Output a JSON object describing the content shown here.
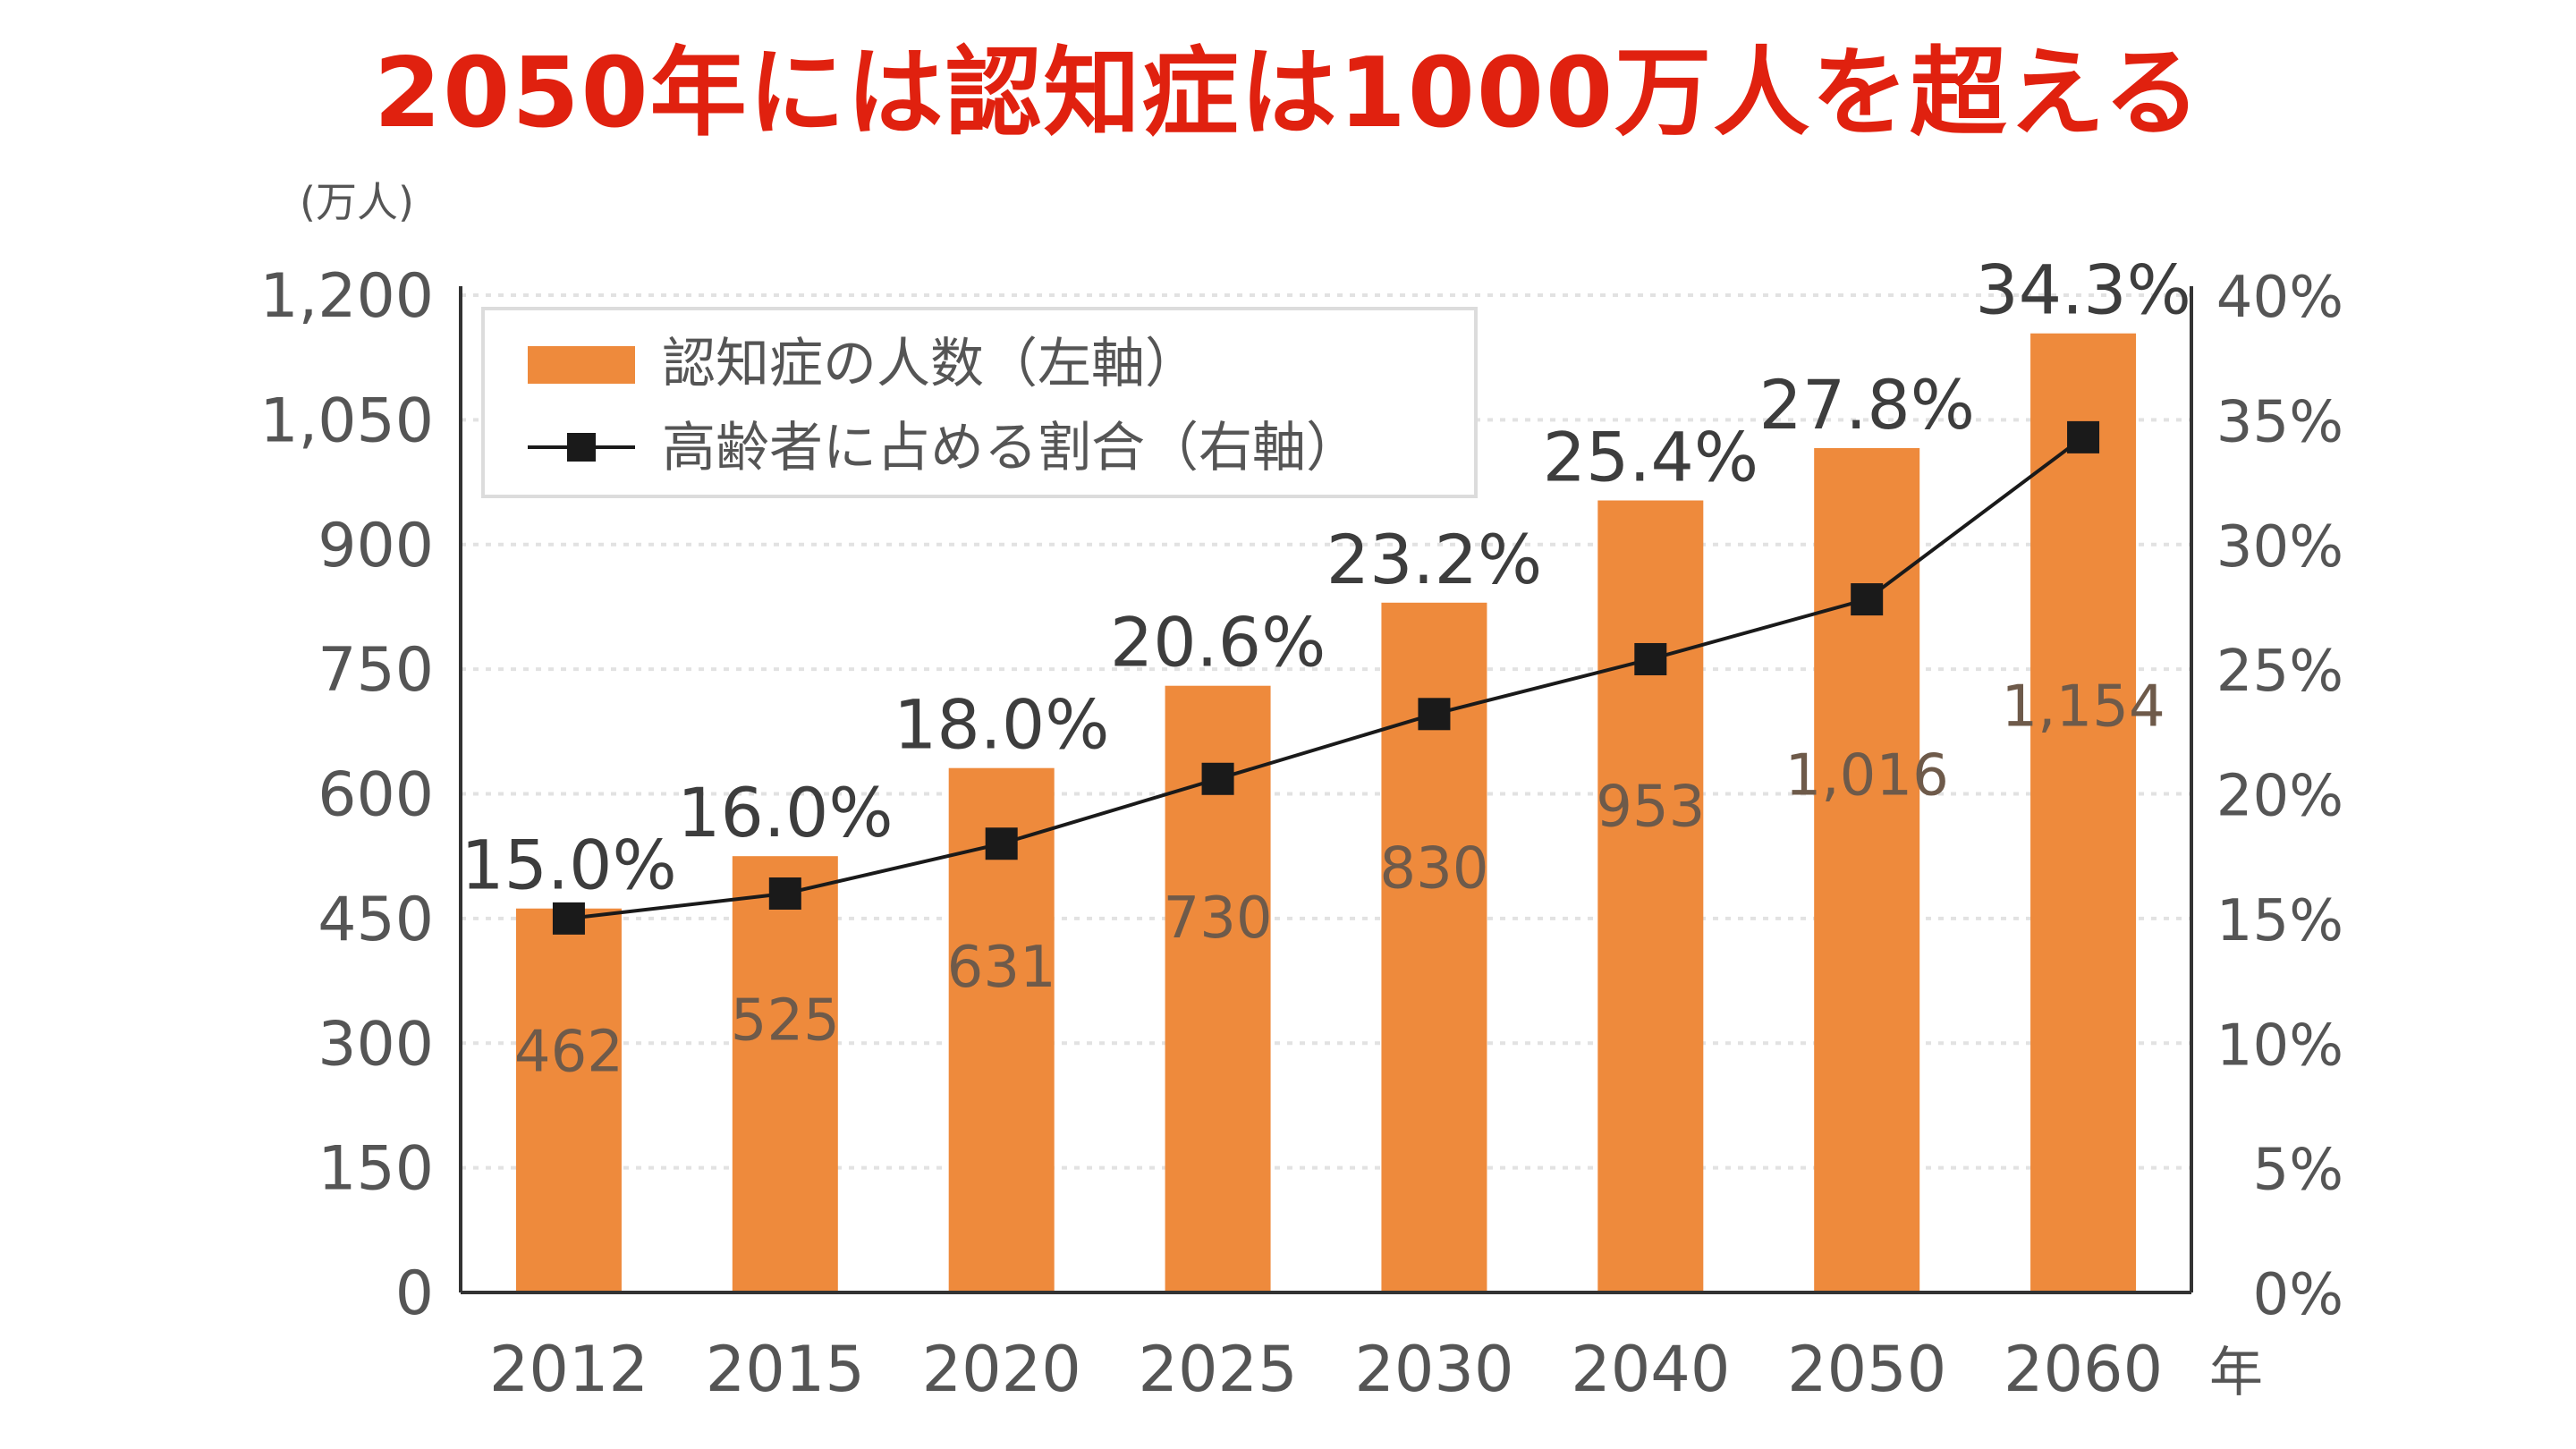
{
  "title": "2050年には認知症は1000万人を超える",
  "chart_data": {
    "type": "bar",
    "categories": [
      "2012",
      "2015",
      "2020",
      "2025",
      "2030",
      "2040",
      "2050",
      "2060"
    ],
    "x_unit": "年",
    "series": [
      {
        "name": "認知症の人数（左軸）",
        "type": "bar",
        "axis": "left",
        "values": [
          462,
          525,
          631,
          730,
          830,
          953,
          1016,
          1154
        ],
        "value_labels": [
          "462",
          "525",
          "631",
          "730",
          "830",
          "953",
          "1,016",
          "1,154"
        ],
        "color": "#ee8a3c"
      },
      {
        "name": "高齢者に占める割合（右軸）",
        "type": "line",
        "axis": "right",
        "values": [
          15.0,
          16.0,
          18.0,
          20.6,
          23.2,
          25.4,
          27.8,
          34.3
        ],
        "value_labels": [
          "15.0%",
          "16.0%",
          "18.0%",
          "20.6%",
          "23.2%",
          "25.4%",
          "27.8%",
          "34.3%"
        ],
        "color": "#1a1a1a"
      }
    ],
    "left_axis": {
      "unit": "(万人)",
      "ylim": [
        0,
        1200
      ],
      "ticks": [
        0,
        150,
        300,
        450,
        600,
        750,
        900,
        1050,
        1200
      ],
      "tick_labels": [
        "0",
        "150",
        "300",
        "450",
        "600",
        "750",
        "900",
        "1,050",
        "1,200"
      ]
    },
    "right_axis": {
      "ylim": [
        0,
        40
      ],
      "ticks": [
        0,
        5,
        10,
        15,
        20,
        25,
        30,
        35,
        40
      ],
      "tick_labels": [
        "0%",
        "5%",
        "10%",
        "15%",
        "20%",
        "25%",
        "30%",
        "35%",
        "40%"
      ]
    },
    "grid": true,
    "legend_position": "top-left"
  }
}
